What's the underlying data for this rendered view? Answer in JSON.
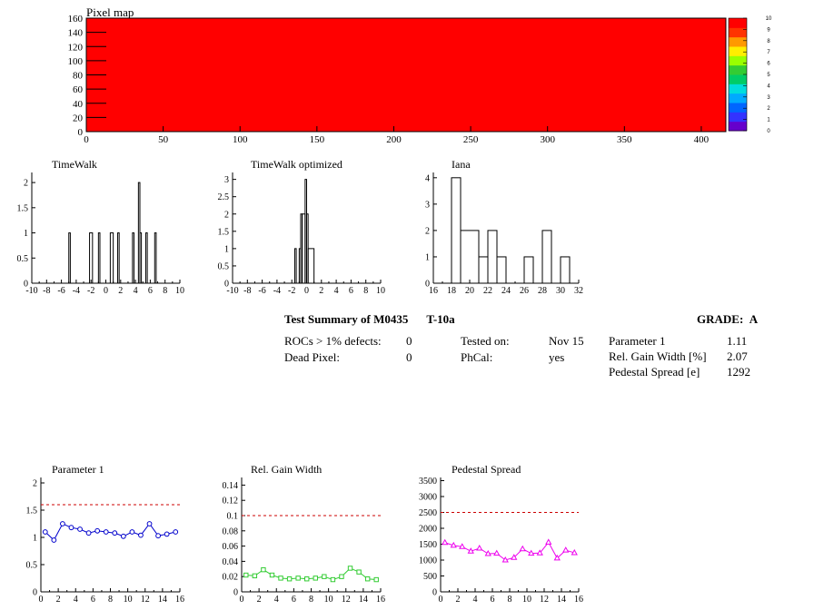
{
  "pixel_map": {
    "title": "Pixel map",
    "color": "#ff0000",
    "x_ticks": [
      "0",
      "50",
      "100",
      "150",
      "200",
      "250",
      "300",
      "350",
      "400"
    ],
    "y_ticks": [
      "0",
      "20",
      "40",
      "60",
      "80",
      "100",
      "120",
      "140",
      "160"
    ],
    "palette_labels": [
      "0",
      "1",
      "2",
      "3",
      "4",
      "5",
      "6",
      "7",
      "8",
      "9",
      "10"
    ],
    "palette_colors": [
      "#6600cc",
      "#3333ff",
      "#0066ff",
      "#00aaff",
      "#00dddd",
      "#00cc66",
      "#33cc33",
      "#99ff00",
      "#ffee00",
      "#ff9900",
      "#ff3300",
      "#ff0000"
    ]
  },
  "summary": {
    "title": "Test Summary of M0435",
    "test": "T-10a",
    "grade_label": "GRADE:",
    "grade": "A",
    "rows_left": [
      {
        "label": "ROCs > 1% defects:",
        "value": "0"
      },
      {
        "label": "Dead Pixel:",
        "value": "0"
      }
    ],
    "rows_mid": [
      {
        "label": "Tested on:",
        "value": "Nov 15"
      },
      {
        "label": "PhCal:",
        "value": "yes"
      }
    ],
    "rows_right": [
      {
        "label": "Parameter 1",
        "value": "1.11"
      },
      {
        "label": "Rel. Gain Width [%]",
        "value": "2.07"
      },
      {
        "label": "Pedestal Spread [e]",
        "value": "1292"
      }
    ]
  },
  "chart_data": [
    {
      "type": "heatmap",
      "title": "Pixel map",
      "xlim": [
        0,
        416
      ],
      "ylim": [
        0,
        160
      ],
      "x_ticks": [
        0,
        50,
        100,
        150,
        200,
        250,
        300,
        350,
        400
      ],
      "y_ticks": [
        0,
        20,
        40,
        60,
        80,
        100,
        120,
        140,
        160
      ],
      "value": 10,
      "zlim": [
        0,
        10
      ]
    },
    {
      "type": "bar",
      "title": "TimeWalk",
      "xlim": [
        -10,
        10
      ],
      "ylim": [
        0,
        2.2
      ],
      "x_ticks": [
        "-10",
        "-8",
        "-6",
        "-4",
        "-2",
        "0",
        "2",
        "4",
        "6",
        "8",
        "10"
      ],
      "y_ticks": [
        "0",
        "0.5",
        "1",
        "1.5",
        "2"
      ],
      "bins": [
        {
          "x0": -5.0,
          "x1": -4.8,
          "v": 1
        },
        {
          "x0": -2.2,
          "x1": -1.8,
          "v": 1
        },
        {
          "x0": -1.0,
          "x1": -0.8,
          "v": 1
        },
        {
          "x0": 0.6,
          "x1": 1.0,
          "v": 1
        },
        {
          "x0": 1.6,
          "x1": 1.8,
          "v": 1
        },
        {
          "x0": 3.6,
          "x1": 3.8,
          "v": 1
        },
        {
          "x0": 4.4,
          "x1": 4.6,
          "v": 2
        },
        {
          "x0": 4.6,
          "x1": 4.8,
          "v": 1
        },
        {
          "x0": 5.4,
          "x1": 5.6,
          "v": 1
        },
        {
          "x0": 6.6,
          "x1": 6.8,
          "v": 1
        }
      ]
    },
    {
      "type": "bar",
      "title": "TimeWalk optimized",
      "xlim": [
        -10,
        10
      ],
      "ylim": [
        0,
        3.2
      ],
      "x_ticks": [
        "-10",
        "-8",
        "-6",
        "-4",
        "-2",
        "0",
        "2",
        "4",
        "6",
        "8",
        "10"
      ],
      "y_ticks": [
        "0",
        "0.5",
        "1",
        "1.5",
        "2",
        "2.5",
        "3"
      ],
      "bins": [
        {
          "x0": -1.6,
          "x1": -1.4,
          "v": 1
        },
        {
          "x0": -1.0,
          "x1": -0.8,
          "v": 1
        },
        {
          "x0": -0.8,
          "x1": -0.6,
          "v": 2
        },
        {
          "x0": -0.6,
          "x1": -0.2,
          "v": 2
        },
        {
          "x0": -0.2,
          "x1": 0.0,
          "v": 3
        },
        {
          "x0": 0.0,
          "x1": 0.2,
          "v": 2
        },
        {
          "x0": 0.2,
          "x1": 1.0,
          "v": 1
        }
      ]
    },
    {
      "type": "bar",
      "title": "Iana",
      "xlim": [
        16,
        32
      ],
      "ylim": [
        0,
        4.2
      ],
      "x_ticks": [
        "16",
        "18",
        "20",
        "22",
        "24",
        "26",
        "28",
        "30",
        "32"
      ],
      "y_ticks": [
        "0",
        "1",
        "2",
        "3",
        "4"
      ],
      "bins": [
        {
          "x0": 18,
          "x1": 19,
          "v": 4
        },
        {
          "x0": 19,
          "x1": 21,
          "v": 2
        },
        {
          "x0": 21,
          "x1": 22,
          "v": 1
        },
        {
          "x0": 22,
          "x1": 23,
          "v": 2
        },
        {
          "x0": 23,
          "x1": 24,
          "v": 1
        },
        {
          "x0": 26,
          "x1": 27,
          "v": 1
        },
        {
          "x0": 28,
          "x1": 29,
          "v": 2
        },
        {
          "x0": 30,
          "x1": 31,
          "v": 1
        }
      ]
    },
    {
      "type": "line",
      "title": "Parameter 1",
      "xlim": [
        0,
        16
      ],
      "ylim": [
        0,
        2.1
      ],
      "x_ticks": [
        "0",
        "2",
        "4",
        "6",
        "8",
        "10",
        "12",
        "14",
        "16"
      ],
      "y_ticks": [
        "0",
        "0.5",
        "1",
        "1.5",
        "2"
      ],
      "threshold": 1.6,
      "color": "#0000cc",
      "marker": "circle",
      "x": [
        0.5,
        1.5,
        2.5,
        3.5,
        4.5,
        5.5,
        6.5,
        7.5,
        8.5,
        9.5,
        10.5,
        11.5,
        12.5,
        13.5,
        14.5,
        15.5
      ],
      "values": [
        1.1,
        0.95,
        1.25,
        1.18,
        1.15,
        1.08,
        1.12,
        1.1,
        1.08,
        1.02,
        1.1,
        1.04,
        1.25,
        1.03,
        1.06,
        1.1
      ]
    },
    {
      "type": "line",
      "title": "Rel. Gain Width",
      "xlim": [
        0,
        16
      ],
      "ylim": [
        0,
        0.15
      ],
      "x_ticks": [
        "0",
        "2",
        "4",
        "6",
        "8",
        "10",
        "12",
        "14",
        "16"
      ],
      "y_ticks": [
        "0",
        "0.02",
        "0.04",
        "0.06",
        "0.08",
        "0.1",
        "0.12",
        "0.14"
      ],
      "threshold": 0.1,
      "color": "#33cc33",
      "marker": "square",
      "x": [
        0.5,
        1.5,
        2.5,
        3.5,
        4.5,
        5.5,
        6.5,
        7.5,
        8.5,
        9.5,
        10.5,
        11.5,
        12.5,
        13.5,
        14.5,
        15.5
      ],
      "values": [
        0.022,
        0.021,
        0.029,
        0.022,
        0.018,
        0.017,
        0.018,
        0.017,
        0.018,
        0.02,
        0.016,
        0.02,
        0.031,
        0.026,
        0.017,
        0.016
      ]
    },
    {
      "type": "line",
      "title": "Pedestal Spread",
      "xlim": [
        0,
        16
      ],
      "ylim": [
        0,
        3600
      ],
      "x_ticks": [
        "0",
        "2",
        "4",
        "6",
        "8",
        "10",
        "12",
        "14",
        "16"
      ],
      "y_ticks": [
        "0",
        "500",
        "1000",
        "1500",
        "2000",
        "2500",
        "3000",
        "3500"
      ],
      "threshold": 2500,
      "color": "#ee00ee",
      "marker": "triangle",
      "x": [
        0.5,
        1.5,
        2.5,
        3.5,
        4.5,
        5.5,
        6.5,
        7.5,
        8.5,
        9.5,
        10.5,
        11.5,
        12.5,
        13.5,
        14.5,
        15.5
      ],
      "values": [
        1550,
        1460,
        1420,
        1280,
        1370,
        1200,
        1210,
        1000,
        1080,
        1350,
        1210,
        1220,
        1560,
        1060,
        1310,
        1230
      ]
    }
  ]
}
